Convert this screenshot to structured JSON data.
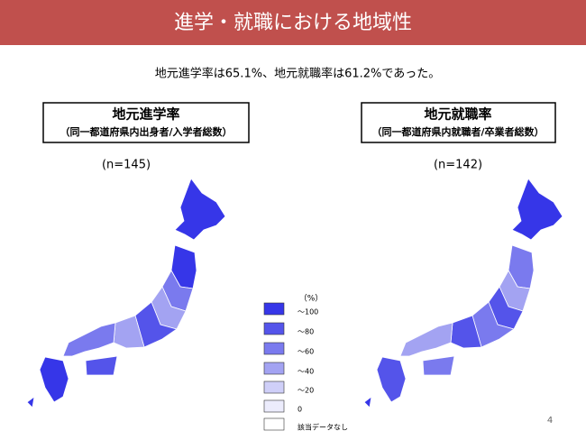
{
  "header": {
    "title": "進学・就職における地域性"
  },
  "summary": "地元進学率は65.1%、地元就職率は61.2%であった。",
  "maps": [
    {
      "title": "地元進学率",
      "subtitle": "（同一都道府県内出身者/入学者総数）",
      "n": "(n=145)"
    },
    {
      "title": "地元就職率",
      "subtitle": "（同一都道府県内就職者/卒業者総数）",
      "n": "(n=142)"
    }
  ],
  "legend": {
    "unit": "（%）",
    "items": [
      {
        "label": "～100",
        "color": "#3636e8"
      },
      {
        "label": "～80",
        "color": "#5454ea"
      },
      {
        "label": "～60",
        "color": "#7a7aee"
      },
      {
        "label": "～40",
        "color": "#a3a3f2"
      },
      {
        "label": "～20",
        "color": "#cfcff8"
      },
      {
        "label": "0",
        "color": "#ececfc"
      },
      {
        "label": "該当データなし",
        "color": "#ffffff"
      }
    ]
  },
  "page_number": "4"
}
